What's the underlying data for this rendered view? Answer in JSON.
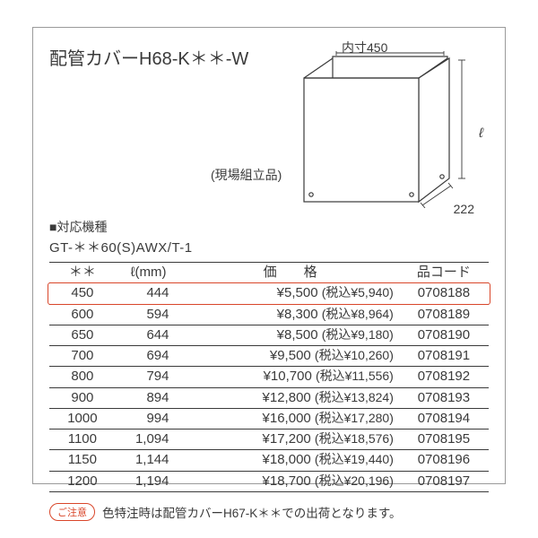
{
  "title": "配管カバーH68-K＊＊-W",
  "diagram": {
    "inner_dim_label": "内寸450",
    "height_symbol": "ℓ",
    "depth_label": "222",
    "assembly_note": "(現場組立品)",
    "stroke_color": "#3a3a3a",
    "fill_color": "#ffffff"
  },
  "model": {
    "header": "■対応機種",
    "value": "GT-＊＊60(S)AWX/T-1"
  },
  "table": {
    "headers": {
      "c1": "＊＊",
      "c2": "ℓ(mm)",
      "c3": "価　　格",
      "c4": "品コード"
    },
    "rows": [
      {
        "c1": "450",
        "c2": "444",
        "price": "¥5,500",
        "tax": "(税込¥5,940)",
        "c4": "0708188",
        "highlight": true
      },
      {
        "c1": "600",
        "c2": "594",
        "price": "¥8,300",
        "tax": "(税込¥8,964)",
        "c4": "0708189"
      },
      {
        "c1": "650",
        "c2": "644",
        "price": "¥8,500",
        "tax": "(税込¥9,180)",
        "c4": "0708190"
      },
      {
        "c1": "700",
        "c2": "694",
        "price": "¥9,500",
        "tax": "(税込¥10,260)",
        "c4": "0708191"
      },
      {
        "c1": "800",
        "c2": "794",
        "price": "¥10,700",
        "tax": "(税込¥11,556)",
        "c4": "0708192"
      },
      {
        "c1": "900",
        "c2": "894",
        "price": "¥12,800",
        "tax": "(税込¥13,824)",
        "c4": "0708193"
      },
      {
        "c1": "1000",
        "c2": "994",
        "price": "¥16,000",
        "tax": "(税込¥17,280)",
        "c4": "0708194"
      },
      {
        "c1": "1100",
        "c2": "1,094",
        "price": "¥17,200",
        "tax": "(税込¥18,576)",
        "c4": "0708195"
      },
      {
        "c1": "1150",
        "c2": "1,144",
        "price": "¥18,000",
        "tax": "(税込¥19,440)",
        "c4": "0708196"
      },
      {
        "c1": "1200",
        "c2": "1,194",
        "price": "¥18,700",
        "tax": "(税込¥20,196)",
        "c4": "0708197"
      }
    ]
  },
  "note": {
    "badge": "ご注意",
    "text": "色特注時は配管カバーH67-K＊＊での出荷となります。"
  },
  "colors": {
    "text": "#3a3a3a",
    "border": "#9a9a9a",
    "accent": "#d9462a",
    "background": "#ffffff"
  }
}
